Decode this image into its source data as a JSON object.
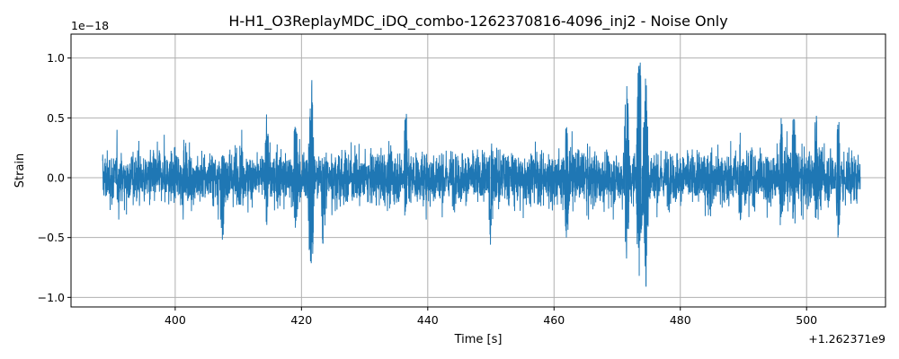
{
  "chart_data": {
    "type": "line",
    "title": "H-H1_O3ReplayMDC_iDQ_combo-1262370816-4096_inj2 - Noise Only",
    "xlabel": "Time [s]",
    "ylabel": "Strain",
    "x_offset_label": "+1.262371e9",
    "y_scale_label": "1e−18",
    "xlim": [
      383.5,
      512.5
    ],
    "ylim": [
      -1.08,
      1.2
    ],
    "x_ticks": [
      400,
      420,
      440,
      460,
      480,
      500
    ],
    "x_tick_labels": [
      "400",
      "420",
      "440",
      "460",
      "480",
      "500"
    ],
    "y_ticks": [
      -1.0,
      -0.5,
      0.0,
      0.5,
      1.0
    ],
    "y_tick_labels": [
      "−1.0",
      "−0.5",
      "0.0",
      "0.5",
      "1.0"
    ],
    "grid": true,
    "series_color": "#1f77b4",
    "series": [
      {
        "x_range": [
          388.5,
          508.5
        ],
        "baseline_amplitude": 0.15,
        "typical_envelope": [
          -0.35,
          0.4
        ],
        "peaks": [
          {
            "x": 389.0,
            "max": 0.36,
            "min": -0.35
          },
          {
            "x": 406.5,
            "max": 0.4,
            "min": -0.3
          },
          {
            "x": 407.5,
            "max": 0.3,
            "min": -0.53
          },
          {
            "x": 414.5,
            "max": 0.54,
            "min": -0.4
          },
          {
            "x": 419.0,
            "max": 0.45,
            "min": -0.5
          },
          {
            "x": 421.5,
            "max": 0.9,
            "min": -0.95
          },
          {
            "x": 423.5,
            "max": 0.35,
            "min": -0.62
          },
          {
            "x": 436.5,
            "max": 0.58,
            "min": -0.4
          },
          {
            "x": 450.0,
            "max": 0.43,
            "min": -0.58
          },
          {
            "x": 462.0,
            "max": 0.52,
            "min": -0.57
          },
          {
            "x": 471.5,
            "max": 0.8,
            "min": -0.68
          },
          {
            "x": 473.5,
            "max": 1.1,
            "min": -0.97
          },
          {
            "x": 474.5,
            "max": 0.88,
            "min": -0.95
          },
          {
            "x": 489.5,
            "max": 0.42,
            "min": -0.44
          },
          {
            "x": 496.0,
            "max": 0.5,
            "min": -0.47
          },
          {
            "x": 498.0,
            "max": 0.55,
            "min": -0.45
          },
          {
            "x": 501.5,
            "max": 0.53,
            "min": -0.4
          },
          {
            "x": 505.0,
            "max": 0.52,
            "min": -0.52
          }
        ]
      }
    ]
  }
}
